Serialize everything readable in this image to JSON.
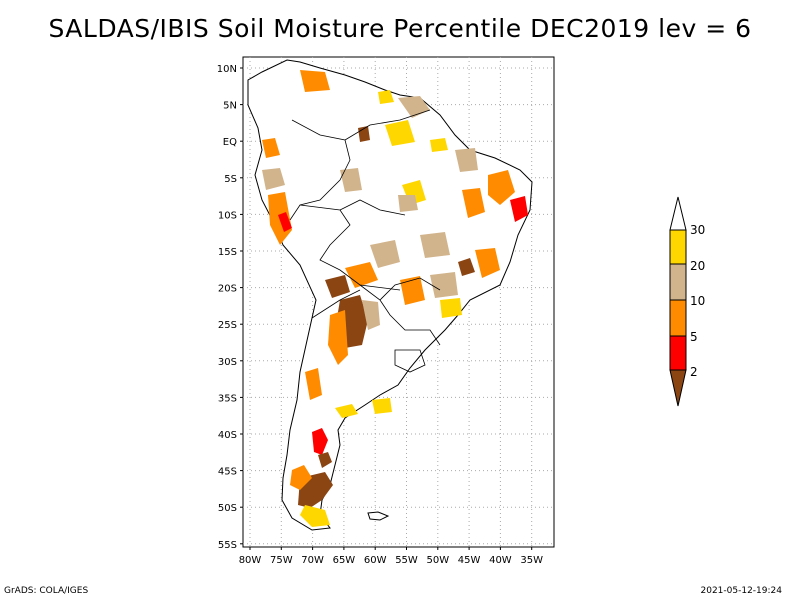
{
  "title": "SALDAS/IBIS Soil Moisture Percentile DEC2019 lev = 6",
  "map": {
    "lat_ticks": [
      "10N",
      "5N",
      "EQ",
      "5S",
      "10S",
      "15S",
      "20S",
      "25S",
      "30S",
      "35S",
      "40S",
      "45S",
      "50S",
      "55S"
    ],
    "lon_ticks": [
      "80W",
      "75W",
      "70W",
      "65W",
      "60W",
      "55W",
      "50W",
      "45W",
      "40W",
      "35W"
    ],
    "extent": {
      "lon_min": -81,
      "lon_max": -33,
      "lat_min": -56,
      "lat_max": 12
    },
    "grid": "dotted"
  },
  "legend": {
    "labels": [
      "30",
      "20",
      "10",
      "5",
      "2"
    ],
    "colors": {
      "above_30": "#ffffff",
      "20_30": "#ffd700",
      "10_20": "#d2b48c",
      "5_10": "#ff8c00",
      "2_5": "#ff0000",
      "below_2": "#8b4513"
    }
  },
  "footer": {
    "left": "GrADS: COLA/IGES",
    "right": "2021-05-12-19:24"
  }
}
